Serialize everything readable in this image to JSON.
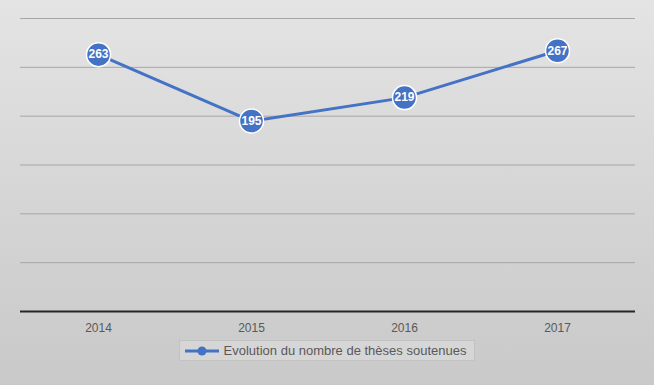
{
  "chart_data": {
    "type": "line",
    "categories": [
      "2014",
      "2015",
      "2016",
      "2017"
    ],
    "series": [
      {
        "name": "Evolution du nombre de thèses soutenues",
        "color": "#4472c4",
        "values": [
          263,
          195,
          219,
          267
        ],
        "marker": "circle",
        "line_style": "solid"
      }
    ],
    "ylim": [
      0,
      300
    ],
    "yticks": [
      0,
      50,
      100,
      150,
      200,
      250,
      300
    ],
    "grid": true,
    "data_labels": true,
    "tick_labels": "x",
    "legend": "bottom"
  }
}
